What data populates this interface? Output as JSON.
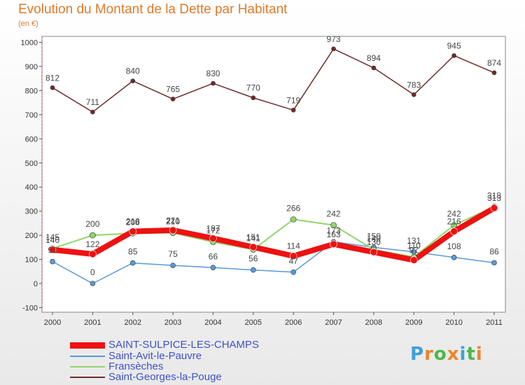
{
  "header": {
    "title": "Evolution du Montant de la Dette par Habitant",
    "subtitle": "(en €)"
  },
  "logo": {
    "text": "Proxiti",
    "colors": [
      "#3da0d8",
      "#e8862a",
      "#4cb848",
      "#e8862a",
      "#3da0d8",
      "#4cb848",
      "#e8862a"
    ]
  },
  "chart_data": {
    "type": "line",
    "x": [
      "2000",
      "2001",
      "2002",
      "2003",
      "2004",
      "2005",
      "2006",
      "2007",
      "2008",
      "2009",
      "2010",
      "2011"
    ],
    "ylim": [
      -100,
      1000
    ],
    "yticks": [
      -100,
      0,
      100,
      200,
      300,
      400,
      500,
      600,
      700,
      800,
      900,
      1000
    ],
    "grid": false,
    "legend_position": "bottom-left",
    "series": [
      {
        "name": "SAINT-SULPICE-LES-CHAMPS",
        "color": "#ee1111",
        "values": [
          140,
          122,
          216,
          221,
          187,
          151,
          114,
          163,
          130,
          97,
          216,
          313
        ],
        "labels": [
          "140",
          "122",
          "216",
          "221",
          "187",
          "151",
          "114",
          "163",
          "130",
          "97",
          "216",
          "313"
        ]
      },
      {
        "name": "Saint-Avit-le-Pauvre",
        "color": "#5a9ad5",
        "values": [
          91,
          0,
          85,
          75,
          66,
          56,
          47,
          173,
          150,
          131,
          108,
          86
        ],
        "labels": [
          "91",
          "0",
          "85",
          "75",
          "66",
          "56",
          "47",
          "173",
          "150",
          "131",
          "108",
          "86"
        ]
      },
      {
        "name": "Fransèches",
        "color": "#8fd66b",
        "values": [
          145,
          200,
          208,
          210,
          172,
          141,
          266,
          242,
          140,
          110,
          242,
          318
        ],
        "labels": [
          "145",
          "200",
          "208",
          "210",
          "172",
          "141",
          "266",
          "242",
          "140",
          "110",
          "242",
          "318"
        ]
      },
      {
        "name": "Saint-Georges-la-Pouge",
        "color": "#6e2b2b",
        "values": [
          812,
          711,
          840,
          765,
          830,
          770,
          719,
          973,
          894,
          783,
          945,
          874
        ],
        "labels": [
          "812",
          "711",
          "840",
          "765",
          "830",
          "770",
          "719",
          "973",
          "894",
          "783",
          "945",
          "874"
        ]
      }
    ]
  }
}
